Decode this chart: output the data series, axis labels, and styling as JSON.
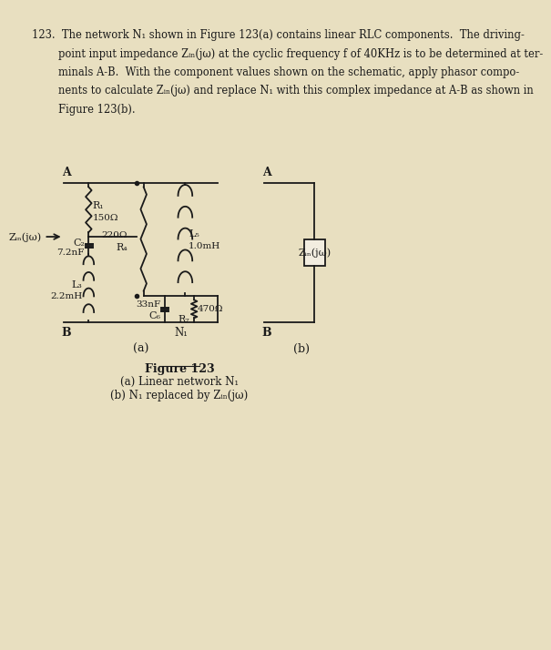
{
  "bg_color": "#e8dfc0",
  "paper_color": "#f2ede0",
  "line_color": "#1a1a1a",
  "text_color": "#1a1a1a",
  "problem_lines": [
    "123.  The network N₁ shown in Figure 123(a) contains linear RLC components.  The driving-",
    "        point input impedance Zᵢₙ(jω) at the cyclic frequency f of 40KHz is to be determined at ter-",
    "        minals A-B.  With the component values shown on the schematic, apply phasor compo-",
    "        nents to calculate Zᵢₙ(jω) and replace N₁ with this complex impedance at A-B as shown in",
    "        Figure 123(b)."
  ],
  "R1_label": "R₁",
  "R1_value": "150Ω",
  "C2_label": "C₂",
  "C2_value": "7.2nF",
  "L3_label": "L₃",
  "L3_value": "2.2mH",
  "R4_label": "R₄",
  "R4_value": "220Ω",
  "L5_label": "L₅",
  "L5_value": "1.0mH",
  "C6_label": "C₆",
  "C6_value": "33nF",
  "R7_label": "R₇",
  "R7_value": "470Ω",
  "N1_label": "N₁",
  "Zin_label": "Zᵢₙ(jω)",
  "label_A": "A",
  "label_B": "B",
  "label_a": "(a)",
  "label_b": "(b)",
  "fig_title": "Figure 123",
  "fig_cap_a": "(a) Linear network N₁",
  "fig_cap_b": "(b) N₁ replaced by Zᵢₙ(jω)"
}
